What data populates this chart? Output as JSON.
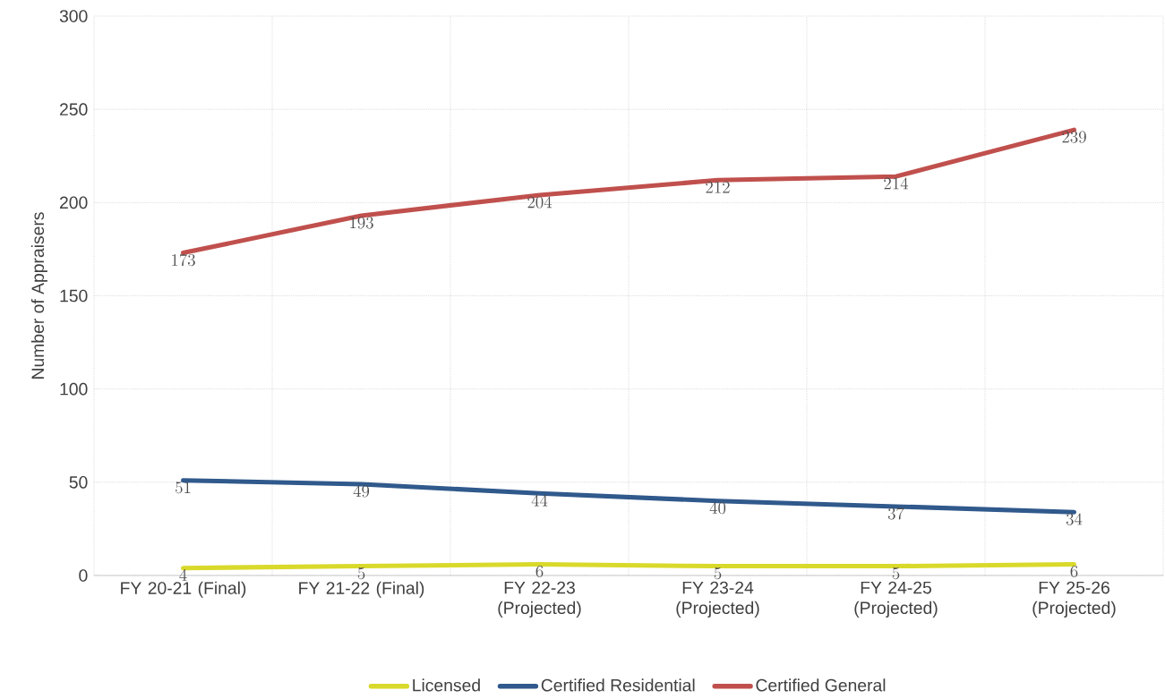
{
  "chart_data": {
    "type": "line",
    "ylabel": "Number of Appraisers",
    "categories": [
      "FY 20-21 (Final)",
      "FY 21-22 (Final)",
      "FY 22-23 (Projected)",
      "FY 23-24 (Projected)",
      "FY 24-25 (Projected)",
      "FY 25-26 (Projected)"
    ],
    "series": [
      {
        "name": "Licensed",
        "color": "#d9d92b",
        "values": [
          4,
          5,
          6,
          5,
          5,
          6
        ]
      },
      {
        "name": "Certified Residential",
        "color": "#30598c",
        "values": [
          51,
          49,
          44,
          40,
          37,
          34
        ]
      },
      {
        "name": "Certified General",
        "color": "#c0504d",
        "values": [
          173,
          193,
          204,
          212,
          214,
          239
        ]
      }
    ],
    "ylim": [
      0,
      300
    ],
    "yticks": [
      0,
      50,
      100,
      150,
      200,
      250,
      300
    ],
    "grid": true,
    "legend": "bottom",
    "data_labels": true,
    "marker": "none",
    "line_style": "solid"
  }
}
